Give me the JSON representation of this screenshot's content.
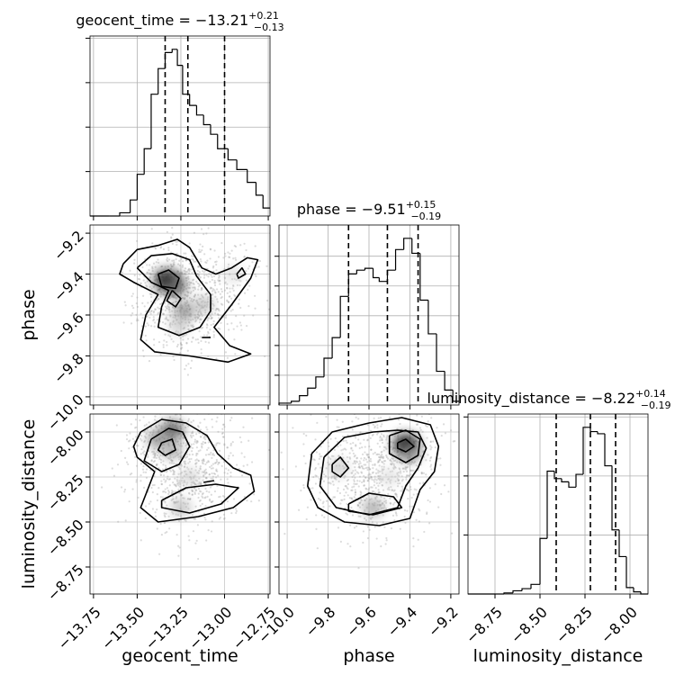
{
  "chart_data": {
    "type": "corner",
    "parameters": [
      "geocent_time",
      "phase",
      "luminosity_distance"
    ],
    "axis_labels": [
      "geocent_time",
      "phase",
      "luminosity_distance"
    ],
    "ranges": {
      "geocent_time": [
        -13.77,
        -12.74
      ],
      "phase": [
        -10.04,
        -9.16
      ],
      "luminosity_distance": [
        -8.9,
        -7.9
      ]
    },
    "grid": true,
    "diagonals": [
      {
        "parameter": "geocent_time",
        "title_name": "geocent_time",
        "median": "−13.21",
        "plus": "+0.21",
        "minus": "−0.13",
        "quantiles": [
          -13.34,
          -13.21,
          -13.0
        ],
        "bins": [
          -13.77,
          -13.66,
          -13.6,
          -13.54,
          -13.5,
          -13.46,
          -13.42,
          -13.38,
          -13.34,
          -13.3,
          -13.27,
          -13.24,
          -13.2,
          -13.16,
          -13.12,
          -13.08,
          -13.04,
          -12.98,
          -12.93,
          -12.87,
          -12.82,
          -12.78,
          -12.74
        ],
        "counts": [
          0,
          0,
          2,
          10,
          26,
          42,
          76,
          92,
          102,
          104,
          94,
          76,
          69,
          63,
          57,
          51,
          42,
          35,
          29,
          21,
          13,
          5
        ],
        "y_ticks": 4
      },
      {
        "parameter": "phase",
        "title_name": "phase",
        "median": "−9.51",
        "plus": "+0.15",
        "minus": "−0.19",
        "quantiles": [
          -9.7,
          -9.51,
          -9.36
        ],
        "bins": [
          -10.04,
          -9.98,
          -9.94,
          -9.9,
          -9.86,
          -9.82,
          -9.78,
          -9.74,
          -9.7,
          -9.66,
          -9.62,
          -9.58,
          -9.55,
          -9.51,
          -9.47,
          -9.43,
          -9.39,
          -9.35,
          -9.31,
          -9.27,
          -9.23,
          -9.19,
          -9.16
        ],
        "counts": [
          1,
          2,
          5,
          9,
          15,
          25,
          36,
          58,
          70,
          72,
          73,
          68,
          66,
          72,
          83,
          89,
          81,
          56,
          38,
          18,
          8,
          2
        ],
        "y_ticks": 6
      },
      {
        "parameter": "luminosity_distance",
        "title_name": "luminosity_distance",
        "median": "−8.22",
        "plus": "+0.14",
        "minus": "−0.19",
        "quantiles": [
          -8.41,
          -8.22,
          -8.08
        ],
        "bins": [
          -8.9,
          -8.75,
          -8.7,
          -8.65,
          -8.6,
          -8.55,
          -8.5,
          -8.46,
          -8.42,
          -8.38,
          -8.34,
          -8.3,
          -8.26,
          -8.22,
          -8.18,
          -8.14,
          -8.1,
          -8.06,
          -8.02,
          -7.98,
          -7.94,
          -7.9
        ],
        "counts": [
          0,
          0,
          1,
          3,
          5,
          9,
          52,
          115,
          108,
          105,
          100,
          112,
          156,
          152,
          150,
          120,
          60,
          35,
          6,
          2,
          0
        ],
        "y_ticks": 3
      }
    ],
    "panels": [
      {
        "x": "geocent_time",
        "y": "phase",
        "samples_center": [
          -13.22,
          -9.5
        ],
        "density_blobs": [
          {
            "x": -13.33,
            "y": -9.43,
            "level": 1.0
          },
          {
            "x": -13.28,
            "y": -9.46,
            "level": 0.7
          },
          {
            "x": -13.23,
            "y": -9.58,
            "level": 0.55
          },
          {
            "x": -13.12,
            "y": -9.55,
            "level": 0.35
          },
          {
            "x": -13.26,
            "y": -9.65,
            "level": 0.3
          },
          {
            "x": -12.95,
            "y": -9.4,
            "level": 0.2
          }
        ],
        "contours": [
          [
            [
              -13.58,
              -9.35
            ],
            [
              -13.5,
              -9.28
            ],
            [
              -13.38,
              -9.26
            ],
            [
              -13.27,
              -9.23
            ],
            [
              -13.2,
              -9.27
            ],
            [
              -13.13,
              -9.37
            ],
            [
              -13.05,
              -9.4
            ],
            [
              -12.96,
              -9.37
            ],
            [
              -12.87,
              -9.32
            ],
            [
              -12.81,
              -9.33
            ],
            [
              -12.85,
              -9.42
            ],
            [
              -12.96,
              -9.55
            ],
            [
              -13.06,
              -9.66
            ],
            [
              -12.97,
              -9.75
            ],
            [
              -12.85,
              -9.79
            ],
            [
              -12.98,
              -9.83
            ],
            [
              -13.2,
              -9.8
            ],
            [
              -13.4,
              -9.78
            ],
            [
              -13.48,
              -9.72
            ],
            [
              -13.45,
              -9.6
            ],
            [
              -13.38,
              -9.5
            ],
            [
              -13.52,
              -9.44
            ],
            [
              -13.6,
              -9.4
            ],
            [
              -13.58,
              -9.35
            ]
          ],
          [
            [
              -13.5,
              -9.37
            ],
            [
              -13.42,
              -9.31
            ],
            [
              -13.3,
              -9.3
            ],
            [
              -13.2,
              -9.33
            ],
            [
              -13.16,
              -9.41
            ],
            [
              -13.08,
              -9.5
            ],
            [
              -13.08,
              -9.58
            ],
            [
              -13.14,
              -9.66
            ],
            [
              -13.26,
              -9.7
            ],
            [
              -13.38,
              -9.66
            ],
            [
              -13.36,
              -9.56
            ],
            [
              -13.32,
              -9.48
            ],
            [
              -13.42,
              -9.44
            ],
            [
              -13.5,
              -9.37
            ]
          ],
          [
            [
              -13.38,
              -9.4
            ],
            [
              -13.32,
              -9.38
            ],
            [
              -13.26,
              -9.42
            ],
            [
              -13.28,
              -9.47
            ],
            [
              -13.36,
              -9.46
            ],
            [
              -13.38,
              -9.4
            ]
          ],
          [
            [
              -13.3,
              -9.48
            ],
            [
              -13.25,
              -9.52
            ],
            [
              -13.28,
              -9.56
            ],
            [
              -13.33,
              -9.53
            ],
            [
              -13.3,
              -9.48
            ]
          ],
          [
            [
              -13.13,
              -9.71
            ],
            [
              -13.08,
              -9.71
            ]
          ],
          [
            [
              -12.93,
              -9.4
            ],
            [
              -12.9,
              -9.37
            ],
            [
              -12.88,
              -9.4
            ],
            [
              -12.92,
              -9.42
            ],
            [
              -12.93,
              -9.4
            ]
          ]
        ]
      },
      {
        "x": "geocent_time",
        "y": "luminosity_distance",
        "samples_center": [
          -13.2,
          -8.2
        ],
        "density_blobs": [
          {
            "x": -13.3,
            "y": -7.99,
            "level": 0.75
          },
          {
            "x": -13.38,
            "y": -8.04,
            "level": 0.55
          },
          {
            "x": -13.3,
            "y": -8.1,
            "level": 0.45
          },
          {
            "x": -13.25,
            "y": -8.42,
            "level": 0.35
          },
          {
            "x": -13.2,
            "y": -8.25,
            "level": 0.25
          }
        ],
        "contours": [
          [
            [
              -13.48,
              -8.0
            ],
            [
              -13.36,
              -7.93
            ],
            [
              -13.22,
              -7.95
            ],
            [
              -13.1,
              -8.02
            ],
            [
              -13.04,
              -8.12
            ],
            [
              -12.95,
              -8.2
            ],
            [
              -12.85,
              -8.24
            ],
            [
              -12.83,
              -8.33
            ],
            [
              -12.95,
              -8.42
            ],
            [
              -13.15,
              -8.47
            ],
            [
              -13.38,
              -8.5
            ],
            [
              -13.48,
              -8.42
            ],
            [
              -13.44,
              -8.32
            ],
            [
              -13.4,
              -8.22
            ],
            [
              -13.5,
              -8.14
            ],
            [
              -13.52,
              -8.08
            ],
            [
              -13.48,
              -8.0
            ]
          ],
          [
            [
              -13.42,
              -8.04
            ],
            [
              -13.32,
              -7.98
            ],
            [
              -13.24,
              -8.0
            ],
            [
              -13.2,
              -8.08
            ],
            [
              -13.26,
              -8.18
            ],
            [
              -13.36,
              -8.22
            ],
            [
              -13.46,
              -8.16
            ],
            [
              -13.42,
              -8.04
            ]
          ],
          [
            [
              -13.36,
              -8.06
            ],
            [
              -13.3,
              -8.04
            ],
            [
              -13.28,
              -8.1
            ],
            [
              -13.34,
              -8.13
            ],
            [
              -13.38,
              -8.1
            ],
            [
              -13.36,
              -8.06
            ]
          ],
          [
            [
              -13.36,
              -8.38
            ],
            [
              -13.22,
              -8.31
            ],
            [
              -13.05,
              -8.29
            ],
            [
              -12.92,
              -8.31
            ],
            [
              -13.02,
              -8.4
            ],
            [
              -13.2,
              -8.45
            ],
            [
              -13.36,
              -8.42
            ],
            [
              -13.36,
              -8.38
            ]
          ],
          [
            [
              -13.12,
              -8.28
            ],
            [
              -13.06,
              -8.27
            ]
          ]
        ]
      },
      {
        "x": "phase",
        "y": "luminosity_distance",
        "samples_center": [
          -9.6,
          -8.2
        ],
        "density_blobs": [
          {
            "x": -9.42,
            "y": -8.07,
            "level": 1.0
          },
          {
            "x": -9.4,
            "y": -8.12,
            "level": 0.5
          },
          {
            "x": -9.58,
            "y": -8.42,
            "level": 0.45
          },
          {
            "x": -9.75,
            "y": -8.2,
            "level": 0.3
          },
          {
            "x": -9.5,
            "y": -8.25,
            "level": 0.2
          }
        ],
        "contours": [
          [
            [
              -9.88,
              -8.12
            ],
            [
              -9.78,
              -8.0
            ],
            [
              -9.6,
              -7.95
            ],
            [
              -9.44,
              -7.92
            ],
            [
              -9.3,
              -7.96
            ],
            [
              -9.26,
              -8.08
            ],
            [
              -9.28,
              -8.22
            ],
            [
              -9.35,
              -8.32
            ],
            [
              -9.4,
              -8.48
            ],
            [
              -9.55,
              -8.52
            ],
            [
              -9.72,
              -8.5
            ],
            [
              -9.85,
              -8.42
            ],
            [
              -9.9,
              -8.3
            ],
            [
              -9.88,
              -8.12
            ]
          ],
          [
            [
              -9.82,
              -8.14
            ],
            [
              -9.72,
              -8.03
            ],
            [
              -9.58,
              -8.0
            ],
            [
              -9.46,
              -7.99
            ],
            [
              -9.36,
              -8.0
            ],
            [
              -9.32,
              -8.09
            ],
            [
              -9.36,
              -8.2
            ],
            [
              -9.42,
              -8.3
            ],
            [
              -9.46,
              -8.42
            ],
            [
              -9.6,
              -8.46
            ],
            [
              -9.76,
              -8.42
            ],
            [
              -9.84,
              -8.3
            ],
            [
              -9.82,
              -8.14
            ]
          ],
          [
            [
              -9.5,
              -8.02
            ],
            [
              -9.42,
              -7.99
            ],
            [
              -9.35,
              -8.04
            ],
            [
              -9.36,
              -8.13
            ],
            [
              -9.42,
              -8.17
            ],
            [
              -9.5,
              -8.12
            ],
            [
              -9.5,
              -8.02
            ]
          ],
          [
            [
              -9.46,
              -8.06
            ],
            [
              -9.42,
              -8.04
            ],
            [
              -9.38,
              -8.08
            ],
            [
              -9.42,
              -8.11
            ],
            [
              -9.46,
              -8.09
            ],
            [
              -9.46,
              -8.06
            ]
          ],
          [
            [
              -9.78,
              -8.18
            ],
            [
              -9.74,
              -8.14
            ],
            [
              -9.7,
              -8.2
            ],
            [
              -9.74,
              -8.25
            ],
            [
              -9.78,
              -8.22
            ],
            [
              -9.78,
              -8.18
            ]
          ],
          [
            [
              -9.7,
              -8.4
            ],
            [
              -9.6,
              -8.34
            ],
            [
              -9.48,
              -8.36
            ],
            [
              -9.44,
              -8.42
            ],
            [
              -9.58,
              -8.46
            ],
            [
              -9.7,
              -8.44
            ],
            [
              -9.7,
              -8.4
            ]
          ]
        ]
      }
    ],
    "ticks": {
      "geocent_time": [
        {
          "v": -13.75,
          "label": "−13.75"
        },
        {
          "v": -13.5,
          "label": "−13.50"
        },
        {
          "v": -13.25,
          "label": "−13.25"
        },
        {
          "v": -13.0,
          "label": "−13.00"
        },
        {
          "v": -12.75,
          "label": "−12.75"
        }
      ],
      "phase": [
        {
          "v": -10.0,
          "label": "−10.0"
        },
        {
          "v": -9.8,
          "label": "−9.8"
        },
        {
          "v": -9.6,
          "label": "−9.6"
        },
        {
          "v": -9.4,
          "label": "−9.4"
        },
        {
          "v": -9.2,
          "label": "−9.2"
        }
      ],
      "luminosity_distance": [
        {
          "v": -8.75,
          "label": "−8.75"
        },
        {
          "v": -8.5,
          "label": "−8.50"
        },
        {
          "v": -8.25,
          "label": "−8.25"
        },
        {
          "v": -8.0,
          "label": "−8.00"
        }
      ]
    }
  }
}
